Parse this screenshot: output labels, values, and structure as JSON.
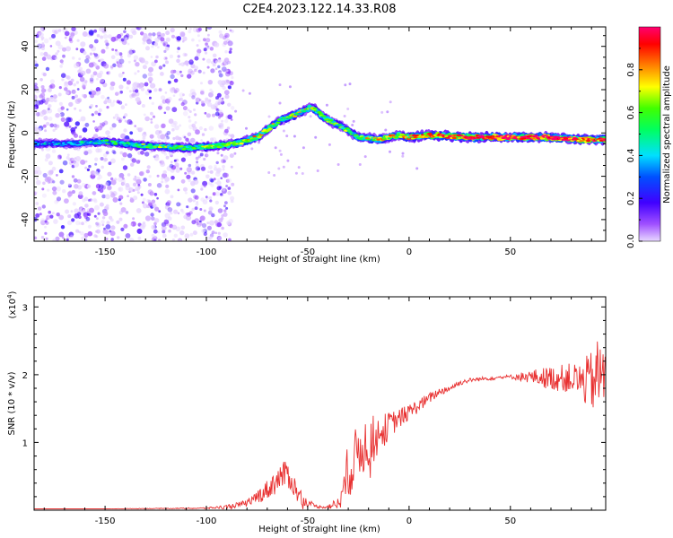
{
  "chart_data": [
    {
      "type": "heatmap",
      "title": "C2E4.2023.122.14.33.R08",
      "xlabel": "Height of straight line (km)",
      "ylabel": "Frequency (Hz)",
      "xlim": [
        -185,
        97
      ],
      "ylim": [
        -50,
        49
      ],
      "x_ticks": [
        -150,
        -100,
        -50,
        0,
        50
      ],
      "y_ticks": [
        -40,
        -20,
        0,
        20,
        40
      ],
      "colorbar": {
        "label": "Normalized spectral amplitude",
        "range": [
          0,
          1
        ],
        "ticks": [
          "0.0",
          "0.2",
          "0.4",
          "0.6",
          "0.8"
        ],
        "colormap": [
          "#e8d8ff",
          "#8a00ff",
          "#0000ff",
          "#00a0ff",
          "#00ffff",
          "#00ff00",
          "#ffff00",
          "#ff8000",
          "#ff0000",
          "#ff0080"
        ]
      },
      "ridge": {
        "height_km": [
          -185,
          -170,
          -150,
          -130,
          -110,
          -95,
          -85,
          -75,
          -65,
          -55,
          -48,
          -42,
          -38,
          -33,
          -25,
          -15,
          -5,
          0,
          10,
          30,
          50,
          70,
          85,
          97
        ],
        "frequency_hz": [
          -5,
          -5,
          -4,
          -6,
          -7,
          -6,
          -5,
          -2,
          5,
          9,
          12,
          7,
          5,
          3,
          -2,
          -3,
          -1,
          -2,
          -1,
          -2,
          -2,
          -2,
          -3,
          -3
        ],
        "amplitude": [
          0.3,
          0.3,
          0.4,
          0.45,
          0.5,
          0.55,
          0.6,
          0.6,
          0.55,
          0.5,
          0.55,
          0.5,
          0.5,
          0.45,
          0.5,
          0.6,
          0.65,
          0.7,
          0.75,
          0.85,
          0.9,
          0.9,
          0.85,
          0.75
        ]
      },
      "noise_region_km": [
        -185,
        -95
      ]
    },
    {
      "type": "line",
      "title": "",
      "xlabel": "Height of straight line (km)",
      "ylabel": "SNR (10 * v/v)",
      "y_multiplier": "(x10",
      "y_multiplier_exp": "4",
      "xlim": [
        -185,
        97
      ],
      "ylim": [
        0,
        3.15
      ],
      "x_ticks": [
        -150,
        -100,
        -50,
        0,
        50
      ],
      "y_ticks": [
        1,
        2,
        3
      ],
      "color": "#e83030",
      "envelope": {
        "x": [
          -185,
          -150,
          -100,
          -90,
          -80,
          -75,
          -70,
          -65,
          -60,
          -55,
          -50,
          -45,
          -40,
          -35,
          -30,
          -25,
          -20,
          -15,
          -10,
          -5,
          0,
          5,
          10,
          15,
          20,
          25,
          30,
          40,
          50,
          60,
          70,
          80,
          85,
          90,
          94,
          97
        ],
        "y": [
          0.02,
          0.02,
          0.03,
          0.05,
          0.1,
          0.2,
          0.3,
          0.45,
          0.55,
          0.25,
          0.1,
          0.05,
          0.05,
          0.1,
          0.5,
          0.9,
          1.0,
          1.1,
          1.25,
          1.35,
          1.45,
          1.55,
          1.65,
          1.75,
          1.8,
          1.88,
          1.92,
          1.95,
          1.97,
          1.97,
          1.95,
          1.95,
          1.9,
          1.9,
          2.0,
          2.0
        ],
        "noise": [
          0,
          0,
          0.01,
          0.03,
          0.05,
          0.1,
          0.15,
          0.2,
          0.2,
          0.15,
          0.05,
          0.02,
          0.03,
          0.1,
          0.35,
          0.45,
          0.4,
          0.3,
          0.2,
          0.15,
          0.12,
          0.1,
          0.08,
          0.06,
          0.05,
          0.04,
          0.03,
          0.03,
          0.03,
          0.1,
          0.18,
          0.22,
          0.3,
          0.45,
          0.6,
          0.5
        ]
      }
    }
  ]
}
